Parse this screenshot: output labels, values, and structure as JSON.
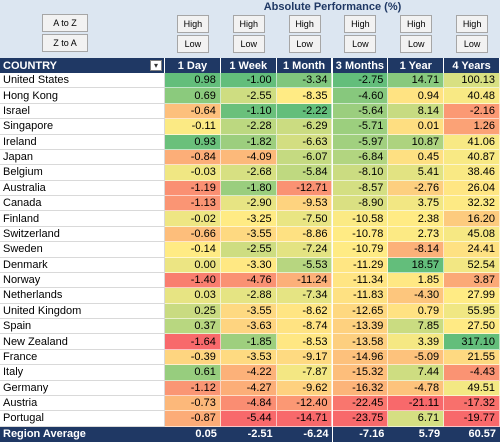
{
  "sort_buttons": [
    "A to Z",
    "Z to A"
  ],
  "title": "Absolute Performance (%)",
  "column_buttons": [
    [
      "High",
      "Low"
    ],
    [
      "High",
      "Low"
    ],
    [
      "High",
      "Low"
    ],
    [
      "High",
      "Low"
    ],
    [
      "High",
      "Low"
    ],
    [
      "High",
      "Low"
    ]
  ],
  "table": {
    "header": "COUNTRY",
    "columns": [
      "1 Day",
      "1 Week",
      "1 Month",
      "3 Months",
      "1 Year",
      "4 Years"
    ],
    "rows": [
      {
        "country": "United States",
        "values": [
          "0.98",
          "-1.00",
          "-3.34",
          "-2.75",
          "14.71",
          "100.13"
        ]
      },
      {
        "country": "Hong Kong",
        "values": [
          "0.69",
          "-2.55",
          "-8.35",
          "-4.60",
          "0.94",
          "40.48"
        ]
      },
      {
        "country": "Israel",
        "values": [
          "-0.64",
          "-1.10",
          "-2.22",
          "-5.64",
          "8.14",
          "-2.16"
        ]
      },
      {
        "country": "Singapore",
        "values": [
          "-0.11",
          "-2.28",
          "-6.29",
          "-5.71",
          "0.01",
          "1.26"
        ]
      },
      {
        "country": "Ireland",
        "values": [
          "0.93",
          "-1.82",
          "-6.63",
          "-5.97",
          "10.87",
          "41.06"
        ]
      },
      {
        "country": "Japan",
        "values": [
          "-0.84",
          "-4.09",
          "-6.07",
          "-6.84",
          "0.45",
          "40.87"
        ]
      },
      {
        "country": "Belgium",
        "values": [
          "-0.03",
          "-2.68",
          "-5.84",
          "-8.10",
          "5.41",
          "38.46"
        ]
      },
      {
        "country": "Australia",
        "values": [
          "-1.19",
          "-1.80",
          "-12.71",
          "-8.57",
          "-2.76",
          "26.04"
        ]
      },
      {
        "country": "Canada",
        "values": [
          "-1.13",
          "-2.90",
          "-9.53",
          "-8.90",
          "3.75",
          "32.32"
        ]
      },
      {
        "country": "Finland",
        "values": [
          "-0.02",
          "-3.25",
          "-7.50",
          "-10.58",
          "2.38",
          "16.20"
        ]
      },
      {
        "country": "Switzerland",
        "values": [
          "-0.66",
          "-3.55",
          "-8.86",
          "-10.78",
          "2.73",
          "45.08"
        ]
      },
      {
        "country": "Sweden",
        "values": [
          "-0.14",
          "-2.55",
          "-7.24",
          "-10.79",
          "-8.14",
          "24.41"
        ]
      },
      {
        "country": "Denmark",
        "values": [
          "0.00",
          "-3.30",
          "-5.53",
          "-11.29",
          "18.57",
          "52.54"
        ]
      },
      {
        "country": "Norway",
        "values": [
          "-1.40",
          "-4.76",
          "-11.24",
          "-11.34",
          "1.85",
          "3.87"
        ]
      },
      {
        "country": "Netherlands",
        "values": [
          "0.03",
          "-2.88",
          "-7.34",
          "-11.83",
          "-4.30",
          "27.99"
        ]
      },
      {
        "country": "United Kingdom",
        "values": [
          "0.25",
          "-3.55",
          "-8.62",
          "-12.65",
          "0.79",
          "55.95"
        ]
      },
      {
        "country": "Spain",
        "values": [
          "0.37",
          "-3.63",
          "-8.74",
          "-13.39",
          "7.85",
          "27.50"
        ]
      },
      {
        "country": "New Zealand",
        "values": [
          "-1.64",
          "-1.85",
          "-8.53",
          "-13.58",
          "3.39",
          "317.10"
        ]
      },
      {
        "country": "France",
        "values": [
          "-0.39",
          "-3.53",
          "-9.17",
          "-14.96",
          "-5.09",
          "21.55"
        ]
      },
      {
        "country": "Italy",
        "values": [
          "0.61",
          "-4.22",
          "-7.87",
          "-15.32",
          "7.44",
          "-4.43"
        ]
      },
      {
        "country": "Germany",
        "values": [
          "-1.12",
          "-4.27",
          "-9.62",
          "-16.32",
          "-4.78",
          "49.51"
        ]
      },
      {
        "country": "Austria",
        "values": [
          "-0.73",
          "-4.84",
          "-12.40",
          "-22.45",
          "-21.11",
          "-17.32"
        ]
      },
      {
        "country": "Portugal",
        "values": [
          "-0.87",
          "-5.44",
          "-14.71",
          "-23.75",
          "6.71",
          "-19.77"
        ]
      }
    ],
    "footer": {
      "label": "Region Average",
      "values": [
        "0.05",
        "-2.51",
        "-6.24",
        "-7.16",
        "5.79",
        "60.57"
      ]
    }
  }
}
